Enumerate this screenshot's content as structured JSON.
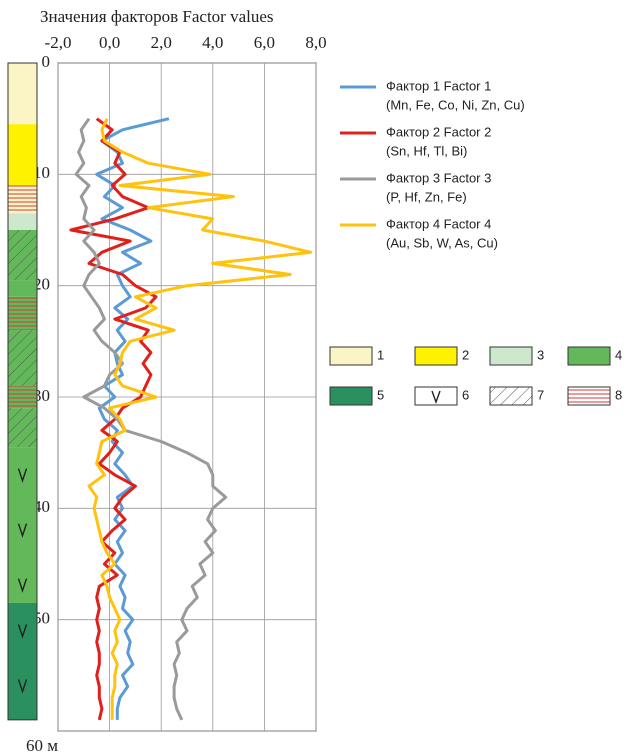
{
  "chart_data": {
    "type": "depth-profile",
    "title": "Значения факторов Factor values",
    "xlim": [
      -2,
      8
    ],
    "xticks": [
      {
        "value": -2,
        "label": "-2,0"
      },
      {
        "value": 0,
        "label": "0,0"
      },
      {
        "value": 2,
        "label": "2,0"
      },
      {
        "value": 4,
        "label": "4,0"
      },
      {
        "value": 6,
        "label": "6,0"
      },
      {
        "value": 8,
        "label": "8,0"
      }
    ],
    "ylim": [
      0,
      60
    ],
    "yticks": [
      0,
      10,
      20,
      30,
      40,
      50,
      {
        "value": 60,
        "label": "60 м"
      }
    ],
    "grid": true,
    "depths": [
      5,
      6,
      7,
      8,
      9,
      10,
      11,
      12,
      13,
      14,
      15,
      16,
      17,
      18,
      19,
      20,
      21,
      22,
      23,
      24,
      25,
      26,
      27,
      28,
      29,
      30,
      31,
      32,
      33,
      34,
      35,
      36,
      37,
      38,
      39,
      40,
      41,
      42,
      43,
      44,
      45,
      46,
      47,
      48,
      49,
      50,
      51,
      52,
      53,
      54,
      55,
      56,
      57,
      58,
      59
    ],
    "series": [
      {
        "name": "Фактор 1 Factor 1",
        "elements": "(Mn, Fe, Co, Ni, Zn, Cu)",
        "color": "#5b9bd5",
        "values": [
          2.3,
          0.5,
          -0.3,
          0.3,
          0.5,
          -0.5,
          0.2,
          -0.2,
          0.5,
          -0.3,
          0.8,
          1.6,
          0.5,
          1.2,
          0.3,
          0.5,
          0.8,
          0.2,
          0.7,
          0.3,
          0.6,
          0.2,
          0.3,
          0.5,
          -0.2,
          0.2,
          -0.4,
          -0.2,
          0.3,
          0.1,
          0.5,
          0.2,
          0.6,
          0.9,
          0.3,
          0.5,
          0.2,
          0.6,
          0.3,
          0.5,
          0.2,
          0.6,
          0.4,
          0.6,
          0.5,
          0.9,
          0.6,
          0.8,
          0.7,
          0.9,
          0.5,
          0.7,
          0.4,
          0.3,
          0.3
        ]
      },
      {
        "name": "Фактор 2 Factor 2",
        "elements": "(Sn, Hf, Tl, Bi)",
        "color": "#e0201b",
        "values": [
          -0.5,
          0.1,
          -0.3,
          0.4,
          0.2,
          0.6,
          0.1,
          0.5,
          1.5,
          0.2,
          -1.5,
          0.8,
          -0.3,
          -0.8,
          0.5,
          1.0,
          1.8,
          1.4,
          0.2,
          1.5,
          1.2,
          1.6,
          1.3,
          1.6,
          1.4,
          1.2,
          0.5,
          0.2,
          -0.3,
          0.3,
          0.0,
          -0.4,
          0.2,
          1.0,
          0.5,
          0.2,
          0.6,
          0.1,
          -0.3,
          0.2,
          -0.2,
          0.3,
          -0.4,
          -0.5,
          -0.4,
          -0.5,
          -0.4,
          -0.5,
          -0.4,
          -0.4,
          -0.5,
          -0.4,
          -0.4,
          -0.3,
          -0.4
        ]
      },
      {
        "name": "Фактор 3 Factor 3",
        "elements": "(P, Hf, Zn, Fe)",
        "color": "#9a9a9a",
        "values": [
          -0.8,
          -1.1,
          -1.0,
          -1.2,
          -1.0,
          -1.3,
          -0.8,
          -1.1,
          -0.9,
          -1.0,
          -0.6,
          -1.0,
          -0.6,
          -0.4,
          -0.8,
          -1.0,
          -0.7,
          -0.4,
          -0.2,
          -0.6,
          -0.3,
          0.2,
          0.5,
          0.0,
          -0.2,
          -1.0,
          -0.2,
          0.3,
          0.6,
          2.0,
          3.0,
          3.8,
          4.0,
          4.0,
          4.5,
          4.0,
          3.8,
          4.1,
          3.7,
          4.0,
          3.5,
          3.7,
          3.2,
          3.4,
          3.0,
          2.8,
          3.0,
          2.6,
          2.7,
          2.5,
          2.6,
          2.5,
          2.5,
          2.6,
          2.8
        ]
      },
      {
        "name": "Фактор 4 Factor 4",
        "elements": "(Au, Sb, W, As, Cu)",
        "color": "#ffc20e",
        "values": [
          -0.1,
          -0.3,
          -0.2,
          0.5,
          1.5,
          3.9,
          0.4,
          4.8,
          1.5,
          4.0,
          3.6,
          6.0,
          7.8,
          4.0,
          7.0,
          3.0,
          1.0,
          1.8,
          1.0,
          2.5,
          0.8,
          0.5,
          0.4,
          0.2,
          0.5,
          1.8,
          0.0,
          0.4,
          0.6,
          -0.3,
          -0.4,
          -0.5,
          -0.2,
          -0.8,
          -0.5,
          -0.6,
          -0.5,
          -0.4,
          -0.3,
          -0.1,
          0.2,
          -0.3,
          -0.1,
          0.0,
          0.2,
          0.4,
          0.2,
          0.3,
          0.1,
          0.3,
          0.2,
          0.2,
          0.1,
          0.1,
          0.1
        ]
      }
    ],
    "units": [
      {
        "label": "1",
        "color": "#fbf5c6"
      },
      {
        "label": "2",
        "color": "#fef200"
      },
      {
        "label": "3",
        "color": "#cde8cd"
      },
      {
        "label": "4",
        "color": "#63b95a"
      },
      {
        "label": "5",
        "color": "#2a9060"
      },
      {
        "label": "6",
        "color": "#ffffff",
        "pattern": "v"
      },
      {
        "label": "7",
        "color": "#ffffff",
        "pattern": "hatch"
      },
      {
        "label": "8",
        "color": "#ffffff",
        "pattern": "lines"
      }
    ],
    "lithology": [
      {
        "top": 0,
        "bottom": 5.5,
        "units": [
          "1"
        ]
      },
      {
        "top": 5.5,
        "bottom": 11,
        "units": [
          "2"
        ]
      },
      {
        "top": 11,
        "bottom": 13.5,
        "units": [
          "1",
          "8"
        ]
      },
      {
        "top": 13.5,
        "bottom": 15,
        "units": [
          "3"
        ]
      },
      {
        "top": 15,
        "bottom": 19.5,
        "units": [
          "4",
          "7"
        ]
      },
      {
        "top": 19.5,
        "bottom": 21,
        "units": [
          "4"
        ]
      },
      {
        "top": 21,
        "bottom": 24,
        "units": [
          "4",
          "8"
        ]
      },
      {
        "top": 24,
        "bottom": 29,
        "units": [
          "4",
          "7"
        ]
      },
      {
        "top": 29,
        "bottom": 31,
        "units": [
          "4",
          "8"
        ]
      },
      {
        "top": 31,
        "bottom": 34.5,
        "units": [
          "4",
          "7"
        ]
      },
      {
        "top": 34.5,
        "bottom": 48.5,
        "units": [
          "4",
          "6"
        ]
      },
      {
        "top": 48.5,
        "bottom": 59,
        "units": [
          "5",
          "6"
        ]
      }
    ]
  }
}
